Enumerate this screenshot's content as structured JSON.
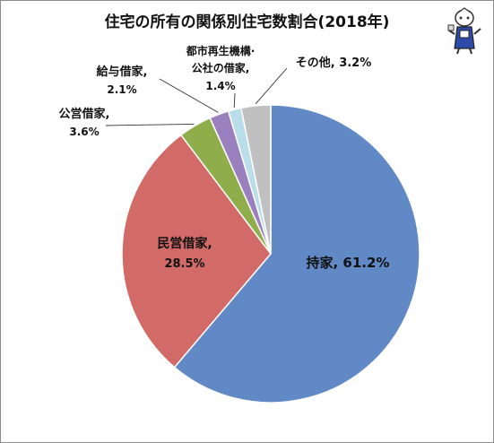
{
  "chart_data": {
    "type": "pie",
    "title": "住宅の所有の関係別住宅数割合(2018年)",
    "slices": [
      {
        "name": "持家",
        "value": 61.2,
        "color": "#6189c6",
        "label_line1": "持家, 61.2%",
        "label_line2": ""
      },
      {
        "name": "民営借家",
        "value": 28.5,
        "color": "#d26a68",
        "label_line1": "民営借家,",
        "label_line2": "28.5%"
      },
      {
        "name": "公営借家",
        "value": 3.6,
        "color": "#8fae4b",
        "label_line1": "公営借家,",
        "label_line2": "3.6%"
      },
      {
        "name": "給与借家",
        "value": 2.1,
        "color": "#9b80bf",
        "label_line1": "給与借家,",
        "label_line2": "2.1%"
      },
      {
        "name": "都市再生機構・公社の借家",
        "value": 1.4,
        "color": "#b9dde9",
        "label_line1": "都市再生機構·",
        "label_line2": "公社の借家,",
        "label_line3": "1.4%"
      },
      {
        "name": "その他",
        "value": 3.2,
        "color": "#c0c0c0",
        "label_line1": "その他, 3.2%",
        "label_line2": ""
      }
    ],
    "start_angle_deg": 0,
    "direction": "clockwise",
    "legend": "none"
  },
  "mascot_icon": "cartoon-mascot-icon"
}
